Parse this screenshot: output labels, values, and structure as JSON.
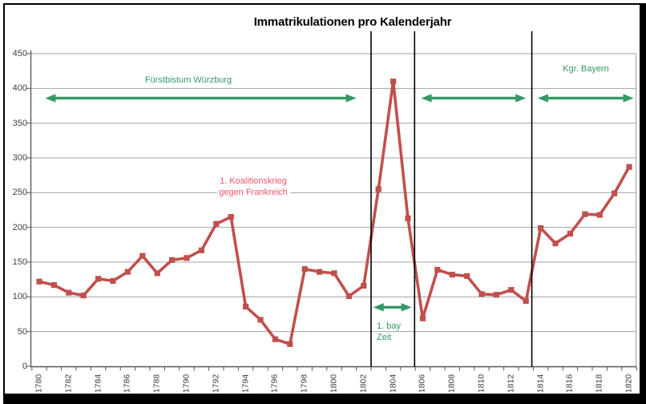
{
  "title": "Immatrikulationen pro Kalenderjahr",
  "chart_data": {
    "type": "line",
    "title": "Immatrikulationen pro Kalenderjahr",
    "xlabel": "",
    "ylabel": "",
    "x": [
      1780,
      1781,
      1782,
      1783,
      1784,
      1785,
      1786,
      1787,
      1788,
      1789,
      1790,
      1791,
      1792,
      1793,
      1794,
      1795,
      1796,
      1797,
      1798,
      1799,
      1800,
      1801,
      1802,
      1803,
      1804,
      1805,
      1806,
      1807,
      1808,
      1809,
      1810,
      1811,
      1812,
      1813,
      1814,
      1815,
      1816,
      1817,
      1818,
      1819,
      1820
    ],
    "values": [
      122,
      117,
      106,
      102,
      126,
      123,
      136,
      159,
      134,
      153,
      156,
      167,
      205,
      215,
      86,
      67,
      39,
      32,
      140,
      136,
      134,
      101,
      116,
      255,
      410,
      213,
      69,
      139,
      132,
      130,
      104,
      103,
      110,
      94,
      199,
      177,
      191,
      219,
      218,
      249,
      287
    ],
    "ylim": [
      0,
      450
    ],
    "yticks": [
      0,
      50,
      100,
      150,
      200,
      250,
      300,
      350,
      400,
      450
    ],
    "xtick_labels": [
      "1780",
      "1782",
      "1784",
      "1786",
      "1788",
      "1790",
      "1792",
      "1794",
      "1796",
      "1798",
      "1800",
      "1802",
      "1804",
      "1806",
      "1808",
      "1810",
      "1812",
      "1814",
      "1816",
      "1818",
      "1820"
    ],
    "grid": "horizontal",
    "legend": "none",
    "line_color": "#C0504D",
    "marker": "square",
    "axis_color": "#595959",
    "grid_color": "#A3A3A3",
    "annotations": {
      "fuerstbistum": {
        "text": "Fürstbistum Würzburg",
        "color": "#339966"
      },
      "koalitionskrieg": {
        "text_line1": "1. Koalitionskrieg",
        "text_line2": "gegen Frankreich",
        "color": "#F4536A"
      },
      "erste_bay_zeit": {
        "text_line1": "1. bay",
        "text_line2": "Zeit",
        "color": "#339966"
      },
      "kgr_bayern": {
        "text": "Kgr. Bayern",
        "color": "#339966"
      },
      "dividers_years": [
        1802.5,
        1805.45,
        1813.4
      ],
      "arrows": [
        {
          "from_year": 1780.4,
          "to_year": 1801.5,
          "at_value": 386
        },
        {
          "from_year": 1805.9,
          "to_year": 1813.0,
          "at_value": 386
        },
        {
          "from_year": 1813.8,
          "to_year": 1820.3,
          "at_value": 386
        },
        {
          "from_year": 1802.65,
          "to_year": 1805.25,
          "at_value": 85
        }
      ]
    }
  }
}
